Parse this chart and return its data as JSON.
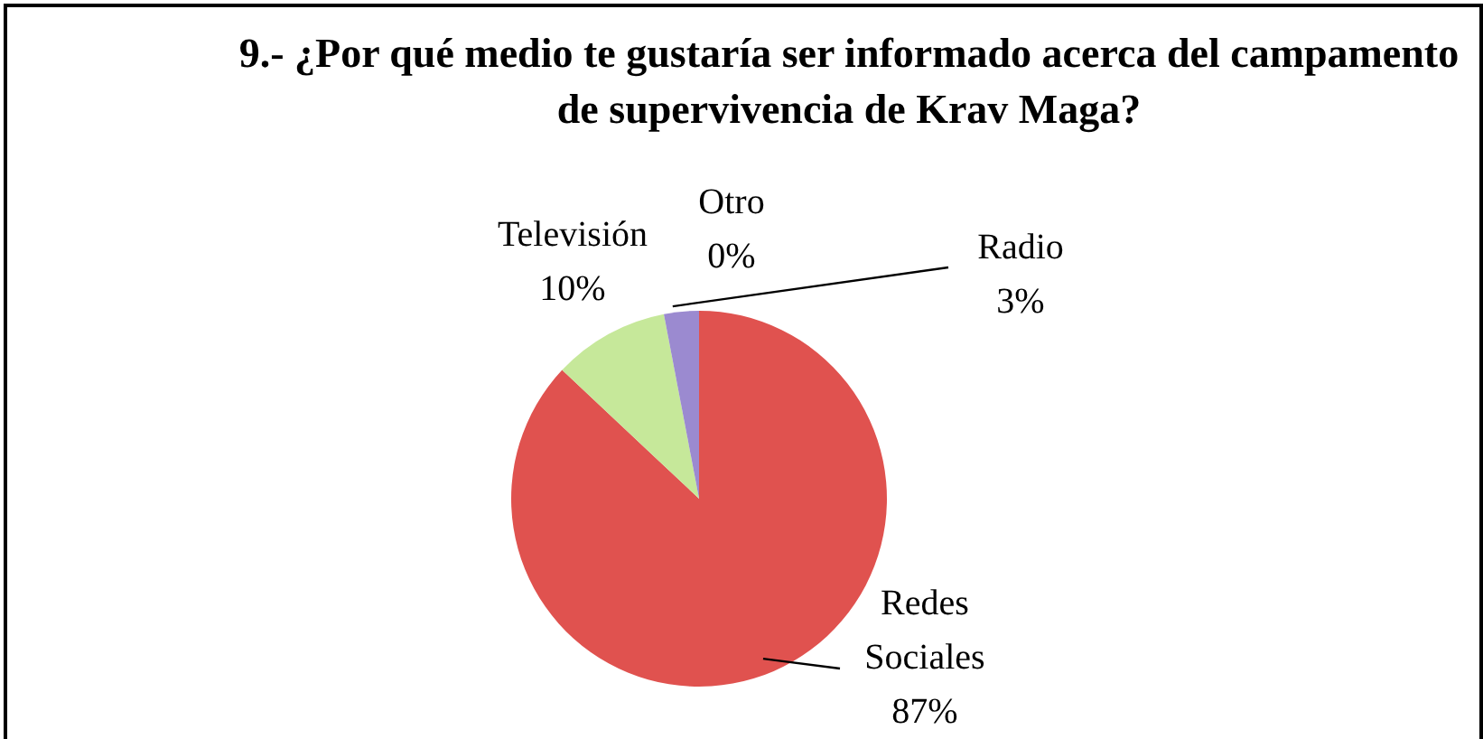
{
  "chart_data": {
    "type": "pie",
    "title": "9.- ¿Por qué medio te gustaría ser informado acerca del campamento de supervivencia de Krav Maga?",
    "categories": [
      "Redes Sociales",
      "Televisión",
      "Otro",
      "Radio"
    ],
    "values": [
      87,
      10,
      0,
      3
    ],
    "value_labels": [
      "87%",
      "10%",
      "0%",
      "3%"
    ],
    "colors": [
      "#e0524f",
      "#c6e89a",
      "#7f7f7f",
      "#9b8ad0"
    ],
    "legend": false
  }
}
